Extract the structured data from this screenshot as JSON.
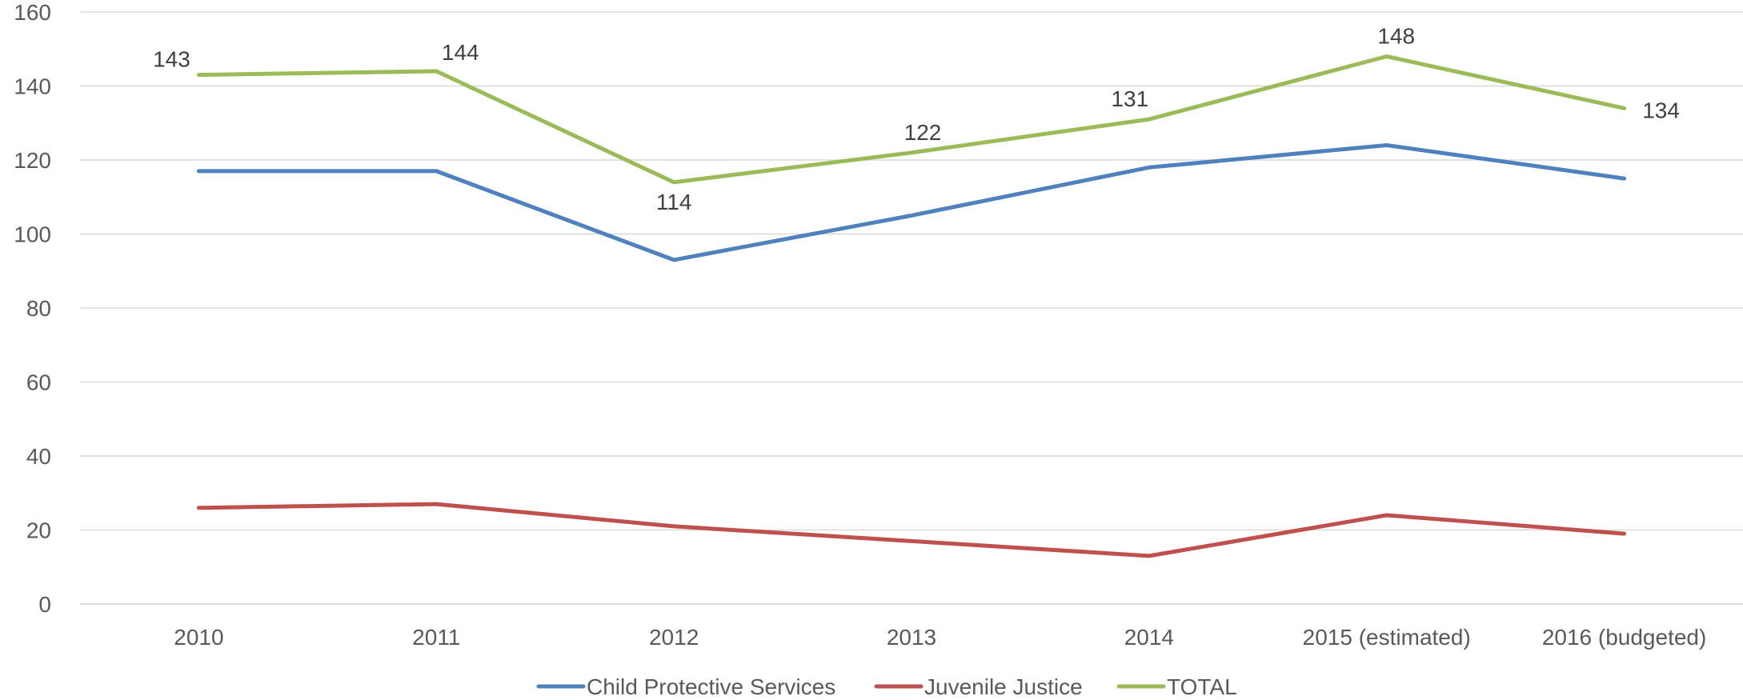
{
  "chart_data": {
    "type": "line",
    "title": "",
    "xlabel": "",
    "ylabel": "",
    "categories": [
      "2010",
      "2011",
      "2012",
      "2013",
      "2014",
      "2015 (estimated)",
      "2016 (budgeted)"
    ],
    "ylim": [
      0,
      160
    ],
    "yticks": [
      0,
      20,
      40,
      60,
      80,
      100,
      120,
      140,
      160
    ],
    "grid": true,
    "legend_position": "bottom",
    "series": [
      {
        "name": "Child Protective Services",
        "color": "#4F81BD",
        "values": [
          117,
          117,
          93,
          105,
          118,
          124,
          115
        ]
      },
      {
        "name": "Juvenile Justice",
        "color": "#C0504D",
        "values": [
          26,
          27,
          21,
          17,
          13,
          24,
          19
        ]
      },
      {
        "name": "TOTAL",
        "color": "#9BBB59",
        "values": [
          143,
          144,
          114,
          122,
          131,
          148,
          134
        ],
        "data_labels": [
          "143",
          "144",
          "114",
          "122",
          "131",
          "148",
          "134"
        ]
      }
    ]
  }
}
